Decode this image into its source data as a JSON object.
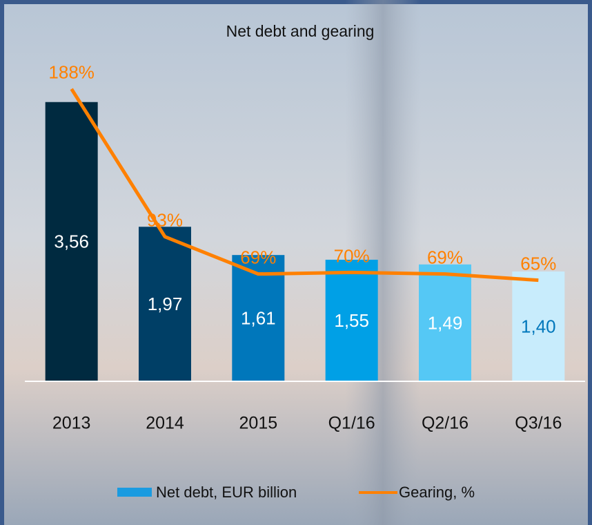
{
  "chart_data": {
    "type": "bar-line",
    "title": "Net debt and gearing",
    "categories": [
      "2013",
      "2014",
      "2015",
      "Q1/16",
      "Q2/16",
      "Q3/16"
    ],
    "series": [
      {
        "name": "Net debt, EUR billion",
        "type": "bar",
        "axis": "y",
        "color": "#1a9be0",
        "colors": [
          "#002a40",
          "#003f66",
          "#0077bb",
          "#00a0e6",
          "#55c8f5",
          "#c8ecfc"
        ],
        "values": [
          3.56,
          1.97,
          1.61,
          1.55,
          1.49,
          1.4
        ],
        "value_labels": [
          "3,56",
          "1,97",
          "1,61",
          "1,55",
          "1,49",
          "1,40"
        ]
      },
      {
        "name": "Gearing, %",
        "type": "line",
        "axis": "y2",
        "color": "#ff8000",
        "values": [
          188,
          93,
          69,
          70,
          69,
          65
        ],
        "value_labels": [
          "188%",
          "93%",
          "69%",
          "70%",
          "69%",
          "65%"
        ]
      }
    ],
    "ylim": [
      0,
      4.5
    ],
    "y2lim": [
      0,
      227
    ]
  }
}
